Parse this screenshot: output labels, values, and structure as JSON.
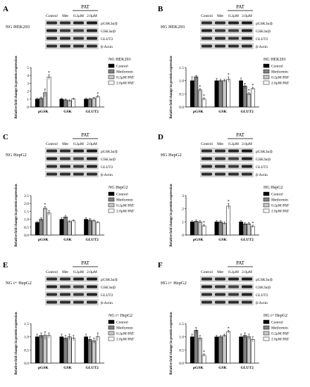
{
  "chart_data": [
    {
      "panel": "A",
      "type": "bar",
      "blot": {
        "condition": "NG HEK293",
        "columns": [
          "Control",
          "Met",
          "0.2μM",
          "2.0μM"
        ],
        "group_label": "PAT",
        "proteins": [
          "pGSK3α/β",
          "GSK3α/β",
          "GLUT2",
          "β-Actin"
        ]
      },
      "legend_title": "NG HEK293",
      "ylabel": "Relative fold change in protein expression",
      "ylim": [
        0,
        5
      ],
      "yticks": [
        0,
        1,
        2,
        3,
        4,
        5
      ],
      "categories": [
        "pGSK",
        "GSK",
        "GLUT2"
      ],
      "series": [
        {
          "name": "Control",
          "values": [
            1.0,
            1.0,
            1.0
          ],
          "errors": [
            0.1,
            0.1,
            0.1
          ]
        },
        {
          "name": "Metformin",
          "values": [
            1.1,
            0.9,
            1.0
          ],
          "errors": [
            0.15,
            0.1,
            0.1
          ]
        },
        {
          "name": "0.2μM PAT",
          "values": [
            1.8,
            0.8,
            1.1
          ],
          "errors": [
            0.5,
            0.1,
            0.1
          ]
        },
        {
          "name": "2.0μM PAT",
          "values": [
            3.8,
            1.0,
            1.3
          ],
          "errors": [
            0.3,
            0.1,
            0.15
          ]
        }
      ],
      "significance": [
        "",
        "",
        "",
        "*",
        "",
        "",
        "",
        "",
        "",
        "",
        "",
        "*"
      ]
    },
    {
      "panel": "B",
      "type": "bar",
      "blot": {
        "condition": "HG HEK293",
        "columns": [
          "Control",
          "Met",
          "0.2μM",
          "2.0μM"
        ],
        "group_label": "PAT",
        "proteins": [
          "pGSK3α/β",
          "GSK3α/β",
          "GLUT2",
          "β-Actin"
        ]
      },
      "legend_title": "HG HEK293",
      "ylabel": "Relative fold change in protein expression",
      "ylim": [
        0,
        1.5
      ],
      "yticks": [
        0.0,
        0.5,
        1.0,
        1.5
      ],
      "categories": [
        "pGSK",
        "GSK",
        "GLUT2"
      ],
      "series": [
        {
          "name": "Control",
          "values": [
            1.0,
            1.0,
            1.0
          ],
          "errors": [
            0.15,
            0.08,
            0.1
          ]
        },
        {
          "name": "Metformin",
          "values": [
            1.15,
            1.0,
            0.8
          ],
          "errors": [
            0.05,
            0.05,
            0.1
          ]
        },
        {
          "name": "0.2μM PAT",
          "values": [
            0.65,
            1.0,
            0.5
          ],
          "errors": [
            0.05,
            0.05,
            0.05
          ]
        },
        {
          "name": "2.0μM PAT",
          "values": [
            0.3,
            1.05,
            0.7
          ],
          "errors": [
            0.05,
            0.1,
            0.05
          ]
        }
      ],
      "significance": [
        "",
        "",
        "*",
        "*",
        "",
        "",
        "",
        "*",
        "",
        "",
        "*",
        "*"
      ]
    },
    {
      "panel": "C",
      "type": "bar",
      "blot": {
        "condition": "NG HepG2",
        "columns": [
          "Control",
          "Met",
          "0.2μM",
          "2.0μM"
        ],
        "group_label": "PAT",
        "proteins": [
          "pGSK3α/β",
          "GSK3α/β",
          "GLUT2",
          "β-Actin"
        ]
      },
      "legend_title": "NG HepG2",
      "ylabel": "Relative fold change in protein expression",
      "ylim": [
        0,
        2.5
      ],
      "yticks": [
        0.0,
        0.5,
        1.0,
        1.5,
        2.0,
        2.5
      ],
      "categories": [
        "pGSK",
        "GSK",
        "GLUT2"
      ],
      "series": [
        {
          "name": "Control",
          "values": [
            0.8,
            1.0,
            1.0
          ],
          "errors": [
            0.05,
            0.1,
            0.1
          ]
        },
        {
          "name": "Metformin",
          "values": [
            1.0,
            1.15,
            0.95
          ],
          "errors": [
            0.1,
            0.1,
            0.1
          ]
        },
        {
          "name": "0.2μM PAT",
          "values": [
            1.7,
            0.85,
            0.9
          ],
          "errors": [
            0.1,
            0.05,
            0.05
          ]
        },
        {
          "name": "2.0μM PAT",
          "values": [
            1.4,
            0.9,
            0.8
          ],
          "errors": [
            0.15,
            0.05,
            0.05
          ]
        }
      ],
      "significance": [
        "",
        "",
        "*",
        "",
        "",
        "",
        "",
        "",
        "",
        "",
        "",
        ""
      ]
    },
    {
      "panel": "D",
      "type": "bar",
      "blot": {
        "condition": "HG HepG2",
        "columns": [
          "Control",
          "Met",
          "0.2μM",
          "2.0μM"
        ],
        "group_label": "PAT",
        "proteins": [
          "pGSK3α/β",
          "GSK3α/β",
          "GLUT2",
          "β-Actin"
        ]
      },
      "legend_title": "HG HepG2",
      "ylabel": "Relative fold change in protein expression",
      "ylim": [
        0,
        3
      ],
      "yticks": [
        0,
        1,
        2,
        3
      ],
      "categories": [
        "pGSK",
        "GSK",
        "GLUT2"
      ],
      "series": [
        {
          "name": "Control",
          "values": [
            1.0,
            1.0,
            1.0
          ],
          "errors": [
            0.1,
            0.1,
            0.1
          ]
        },
        {
          "name": "Metformin",
          "values": [
            1.05,
            1.0,
            0.85
          ],
          "errors": [
            0.1,
            0.1,
            0.1
          ]
        },
        {
          "name": "0.2μM PAT",
          "values": [
            1.0,
            0.9,
            0.85
          ],
          "errors": [
            0.1,
            0.1,
            0.1
          ]
        },
        {
          "name": "2.0μM PAT",
          "values": [
            0.7,
            2.2,
            0.65
          ],
          "errors": [
            0.1,
            0.2,
            0.1
          ]
        }
      ],
      "significance": [
        "",
        "",
        "",
        "*",
        "",
        "",
        "",
        "*",
        "",
        "",
        "",
        "*"
      ]
    },
    {
      "panel": "E",
      "type": "bar",
      "blot": {
        "condition": "NG i+ HepG2",
        "columns": [
          "Control",
          "Met",
          "0.2μM",
          "2.0μM"
        ],
        "group_label": "PAT",
        "proteins": [
          "pGSK3α/β",
          "GSK3α/β",
          "GLUT2",
          "β-Actin"
        ]
      },
      "legend_title": "NG i+ HepG2",
      "ylabel": "Relative fold change in protein expression",
      "ylim": [
        0,
        1.5
      ],
      "yticks": [
        0.0,
        0.5,
        1.0,
        1.5
      ],
      "categories": [
        "pGSK",
        "GSK",
        "GLUT2"
      ],
      "series": [
        {
          "name": "Control",
          "values": [
            1.0,
            1.0,
            1.0
          ],
          "errors": [
            0.1,
            0.1,
            0.1
          ]
        },
        {
          "name": "Metformin",
          "values": [
            1.05,
            0.95,
            0.9
          ],
          "errors": [
            0.1,
            0.1,
            0.1
          ]
        },
        {
          "name": "0.2μM PAT",
          "values": [
            1.05,
            1.0,
            0.85
          ],
          "errors": [
            0.15,
            0.1,
            0.1
          ]
        },
        {
          "name": "2.0μM PAT",
          "values": [
            1.05,
            0.95,
            1.0
          ],
          "errors": [
            0.1,
            0.1,
            0.15
          ]
        }
      ],
      "significance": [
        "",
        "",
        "",
        "",
        "",
        "",
        "",
        "",
        "",
        "",
        "",
        ""
      ]
    },
    {
      "panel": "F",
      "type": "bar",
      "blot": {
        "condition": "HG i+ HepG2",
        "columns": [
          "Control",
          "Met",
          "0.2μM",
          "2.0μM"
        ],
        "group_label": "PAT",
        "proteins": [
          "pGSK3α/β",
          "GSK3α/β",
          "GLUT2",
          "β-Actin"
        ]
      },
      "legend_title": "HG i+ HepG2",
      "ylabel": "Relative fold change in protein expression",
      "ylim": [
        0,
        1.5
      ],
      "yticks": [
        0.0,
        0.5,
        1.0,
        1.5
      ],
      "categories": [
        "pGSK",
        "GSK",
        "GLUT2"
      ],
      "series": [
        {
          "name": "Control",
          "values": [
            1.0,
            1.0,
            1.0
          ],
          "errors": [
            0.1,
            0.05,
            0.1
          ]
        },
        {
          "name": "Metformin",
          "values": [
            1.25,
            1.0,
            1.05
          ],
          "errors": [
            0.1,
            0.05,
            0.1
          ]
        },
        {
          "name": "0.2μM PAT",
          "values": [
            0.95,
            1.05,
            1.0
          ],
          "errors": [
            0.1,
            0.05,
            0.1
          ]
        },
        {
          "name": "2.0μM PAT",
          "values": [
            0.3,
            1.2,
            0.9
          ],
          "errors": [
            0.05,
            0.05,
            0.1
          ]
        }
      ],
      "significance": [
        "",
        "",
        "",
        "*",
        "",
        "",
        "",
        "*",
        "",
        "",
        "",
        ""
      ]
    }
  ],
  "colors": {
    "Control": "#000000",
    "Metformin": "#808080",
    "0.2μM PAT": "#c8c8c8",
    "2.0μM PAT": "#ffffff"
  }
}
